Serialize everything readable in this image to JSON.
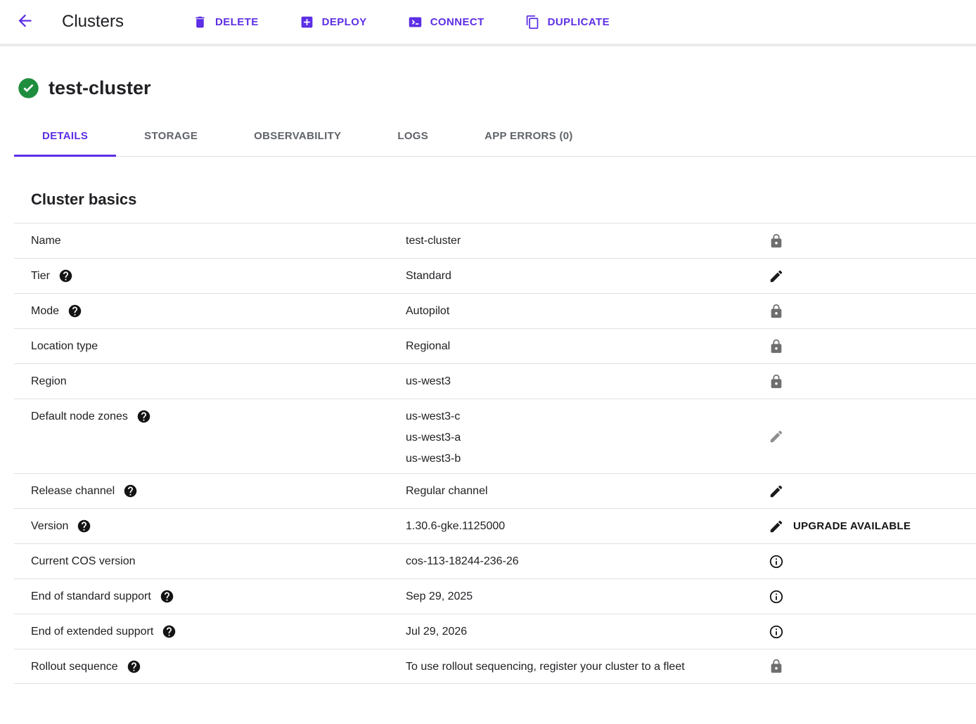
{
  "colors": {
    "accent_purple": "#5C2EE5",
    "success_green": "#1E8E3E",
    "inactive_tab_gray": "#5F6368",
    "divider_gray": "#E0E0E0",
    "lock_gray": "#6E6E6E",
    "text": "#202124"
  },
  "header": {
    "title": "Clusters",
    "back_icon": "arrow-left-icon",
    "actions": [
      {
        "label": "DELETE",
        "icon": "trash-icon"
      },
      {
        "label": "DEPLOY",
        "icon": "plus-box-icon"
      },
      {
        "label": "CONNECT",
        "icon": "terminal-icon"
      },
      {
        "label": "DUPLICATE",
        "icon": "duplicate-icon"
      }
    ]
  },
  "cluster": {
    "name": "test-cluster",
    "status_icon": "check-circle-icon",
    "status": "ok"
  },
  "tabs": [
    {
      "label": "DETAILS",
      "active": true
    },
    {
      "label": "STORAGE",
      "active": false
    },
    {
      "label": "OBSERVABILITY",
      "active": false
    },
    {
      "label": "LOGS",
      "active": false
    },
    {
      "label": "APP ERRORS (0)",
      "active": false
    }
  ],
  "section": {
    "title": "Cluster basics",
    "rows": [
      {
        "label": "Name",
        "help": false,
        "values": [
          "test-cluster"
        ],
        "icon": "lock-icon"
      },
      {
        "label": "Tier",
        "help": true,
        "values": [
          "Standard"
        ],
        "icon": "edit-icon"
      },
      {
        "label": "Mode",
        "help": true,
        "values": [
          "Autopilot"
        ],
        "icon": "lock-icon"
      },
      {
        "label": "Location type",
        "help": false,
        "values": [
          "Regional"
        ],
        "icon": "lock-icon"
      },
      {
        "label": "Region",
        "help": false,
        "values": [
          "us-west3"
        ],
        "icon": "lock-icon"
      },
      {
        "label": "Default node zones",
        "help": true,
        "values": [
          "us-west3-c",
          "us-west3-a",
          "us-west3-b"
        ],
        "icon": "edit-icon-disabled"
      },
      {
        "label": "Release channel",
        "help": true,
        "values": [
          "Regular channel"
        ],
        "icon": "edit-icon"
      },
      {
        "label": "Version",
        "help": true,
        "values": [
          "1.30.6-gke.1125000"
        ],
        "icon": "edit-icon",
        "action_label": "UPGRADE AVAILABLE"
      },
      {
        "label": "Current COS version",
        "help": false,
        "values": [
          "cos-113-18244-236-26"
        ],
        "icon": "info-icon"
      },
      {
        "label": "End of standard support",
        "help": true,
        "values": [
          "Sep 29, 2025"
        ],
        "icon": "info-icon"
      },
      {
        "label": "End of extended support",
        "help": true,
        "values": [
          "Jul 29, 2026"
        ],
        "icon": "info-icon"
      },
      {
        "label": "Rollout sequence",
        "help": true,
        "values": [
          "To use rollout sequencing, register your cluster to a fleet"
        ],
        "icon": "lock-icon"
      }
    ]
  }
}
